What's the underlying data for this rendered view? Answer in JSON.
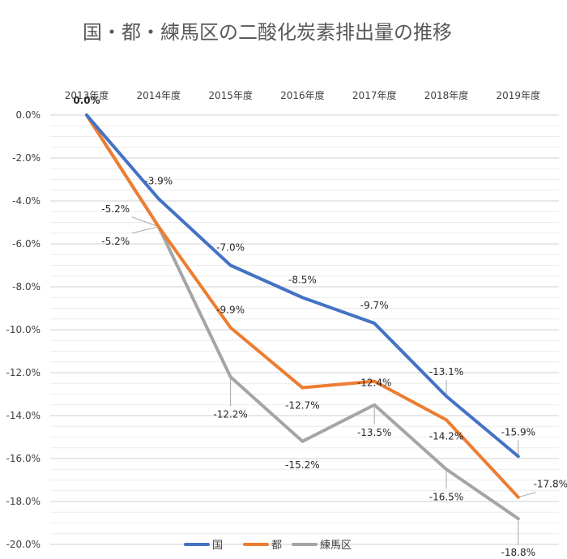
{
  "chart_data": {
    "type": "line",
    "title": "国・都・練馬区の二酸化炭素排出量の推移",
    "categories": [
      "2013年度",
      "2014年度",
      "2015年度",
      "2016年度",
      "2017年度",
      "2018年度",
      "2019年度"
    ],
    "yTicks": [
      "0.0%",
      "-2.0%",
      "-4.0%",
      "-6.0%",
      "-8.0%",
      "-10.0%",
      "-12.0%",
      "-14.0%",
      "-16.0%",
      "-18.0%",
      "-20.0%"
    ],
    "ylim": [
      -20,
      0
    ],
    "grid": true,
    "legend_position": "bottom",
    "series": [
      {
        "name": "国",
        "color": "#4472c4",
        "values": [
          0.0,
          -3.9,
          -7.0,
          -8.5,
          -9.7,
          -13.1,
          -15.9
        ],
        "labels": [
          "0.0%",
          "-3.9%",
          "-7.0%",
          "-8.5%",
          "-9.7%",
          "-13.1%",
          "-15.9%"
        ]
      },
      {
        "name": "都",
        "color": "#ed7d31",
        "values": [
          0.0,
          -5.2,
          -9.9,
          -12.7,
          -12.4,
          -14.2,
          -17.8
        ],
        "labels": [
          "0.0%",
          "-5.2%",
          "-9.9%",
          "-12.7%",
          "-12.4%",
          "-14.2%",
          "-17.8%"
        ]
      },
      {
        "name": "練馬区",
        "color": "#a5a5a5",
        "values": [
          0.0,
          -5.2,
          -12.2,
          -15.2,
          -13.5,
          -16.5,
          -18.8
        ],
        "labels": [
          "0.0%",
          "-5.2%",
          "-12.2%",
          "-15.2%",
          "-13.5%",
          "-16.5%",
          "-18.8%"
        ]
      }
    ]
  }
}
